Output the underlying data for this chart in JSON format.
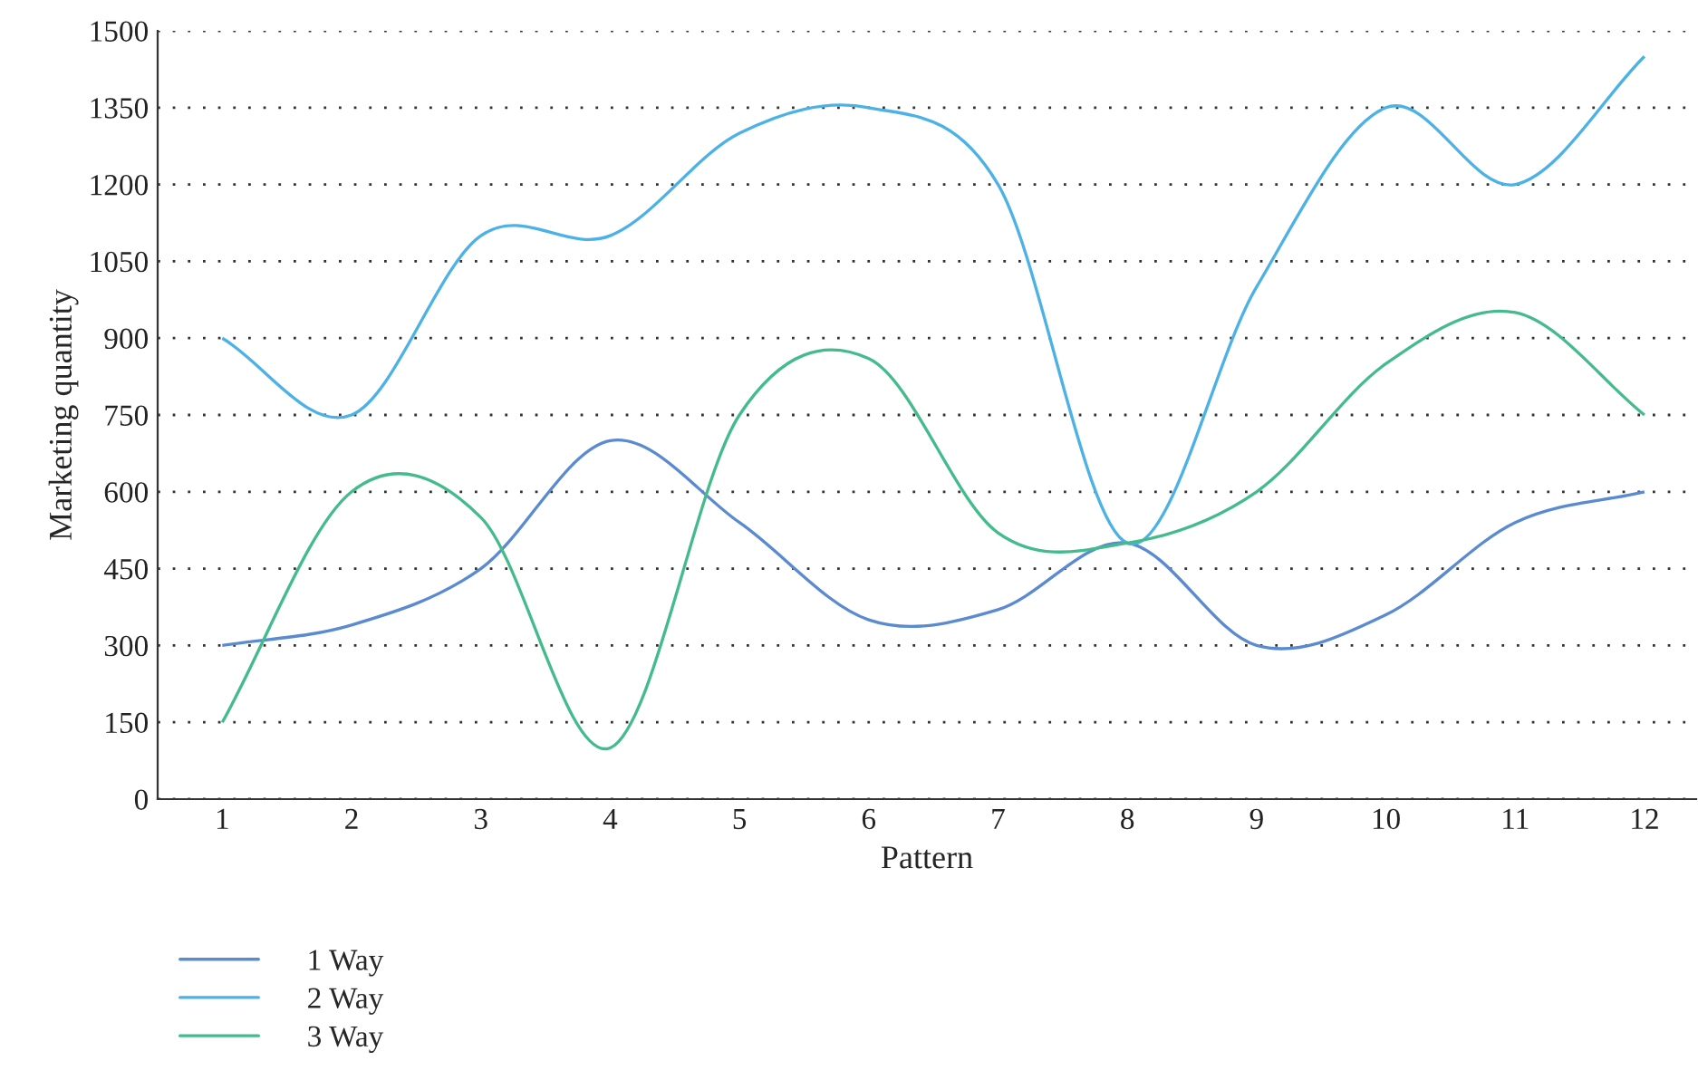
{
  "chart_data": {
    "type": "line",
    "xlabel": "Pattern",
    "ylabel": "Marketing quantity",
    "x": [
      1,
      2,
      3,
      4,
      5,
      6,
      7,
      8,
      9,
      10,
      11,
      12
    ],
    "series": [
      {
        "name": "1 Way",
        "color": "#5a8ad0",
        "values": [
          300,
          340,
          450,
          700,
          540,
          350,
          370,
          500,
          300,
          360,
          540,
          600
        ]
      },
      {
        "name": "2 Way",
        "color": "#4cb2e6",
        "values": [
          900,
          750,
          1100,
          1100,
          1300,
          1350,
          1200,
          500,
          1000,
          1350,
          1200,
          1450
        ]
      },
      {
        "name": "3 Way",
        "color": "#44bb8c",
        "values": [
          150,
          600,
          550,
          100,
          750,
          860,
          520,
          500,
          600,
          850,
          950,
          750
        ]
      }
    ],
    "xlim": [
      0.5,
      12.4
    ],
    "ylim": [
      0,
      1500
    ],
    "xticks": [
      1,
      2,
      3,
      4,
      5,
      6,
      7,
      8,
      9,
      10,
      11,
      12
    ],
    "yticks": [
      0,
      150,
      300,
      450,
      600,
      750,
      900,
      1050,
      1200,
      1350,
      1500
    ],
    "grid": "y",
    "legend": "bottom left",
    "marker": "none",
    "line_style": "solid"
  }
}
